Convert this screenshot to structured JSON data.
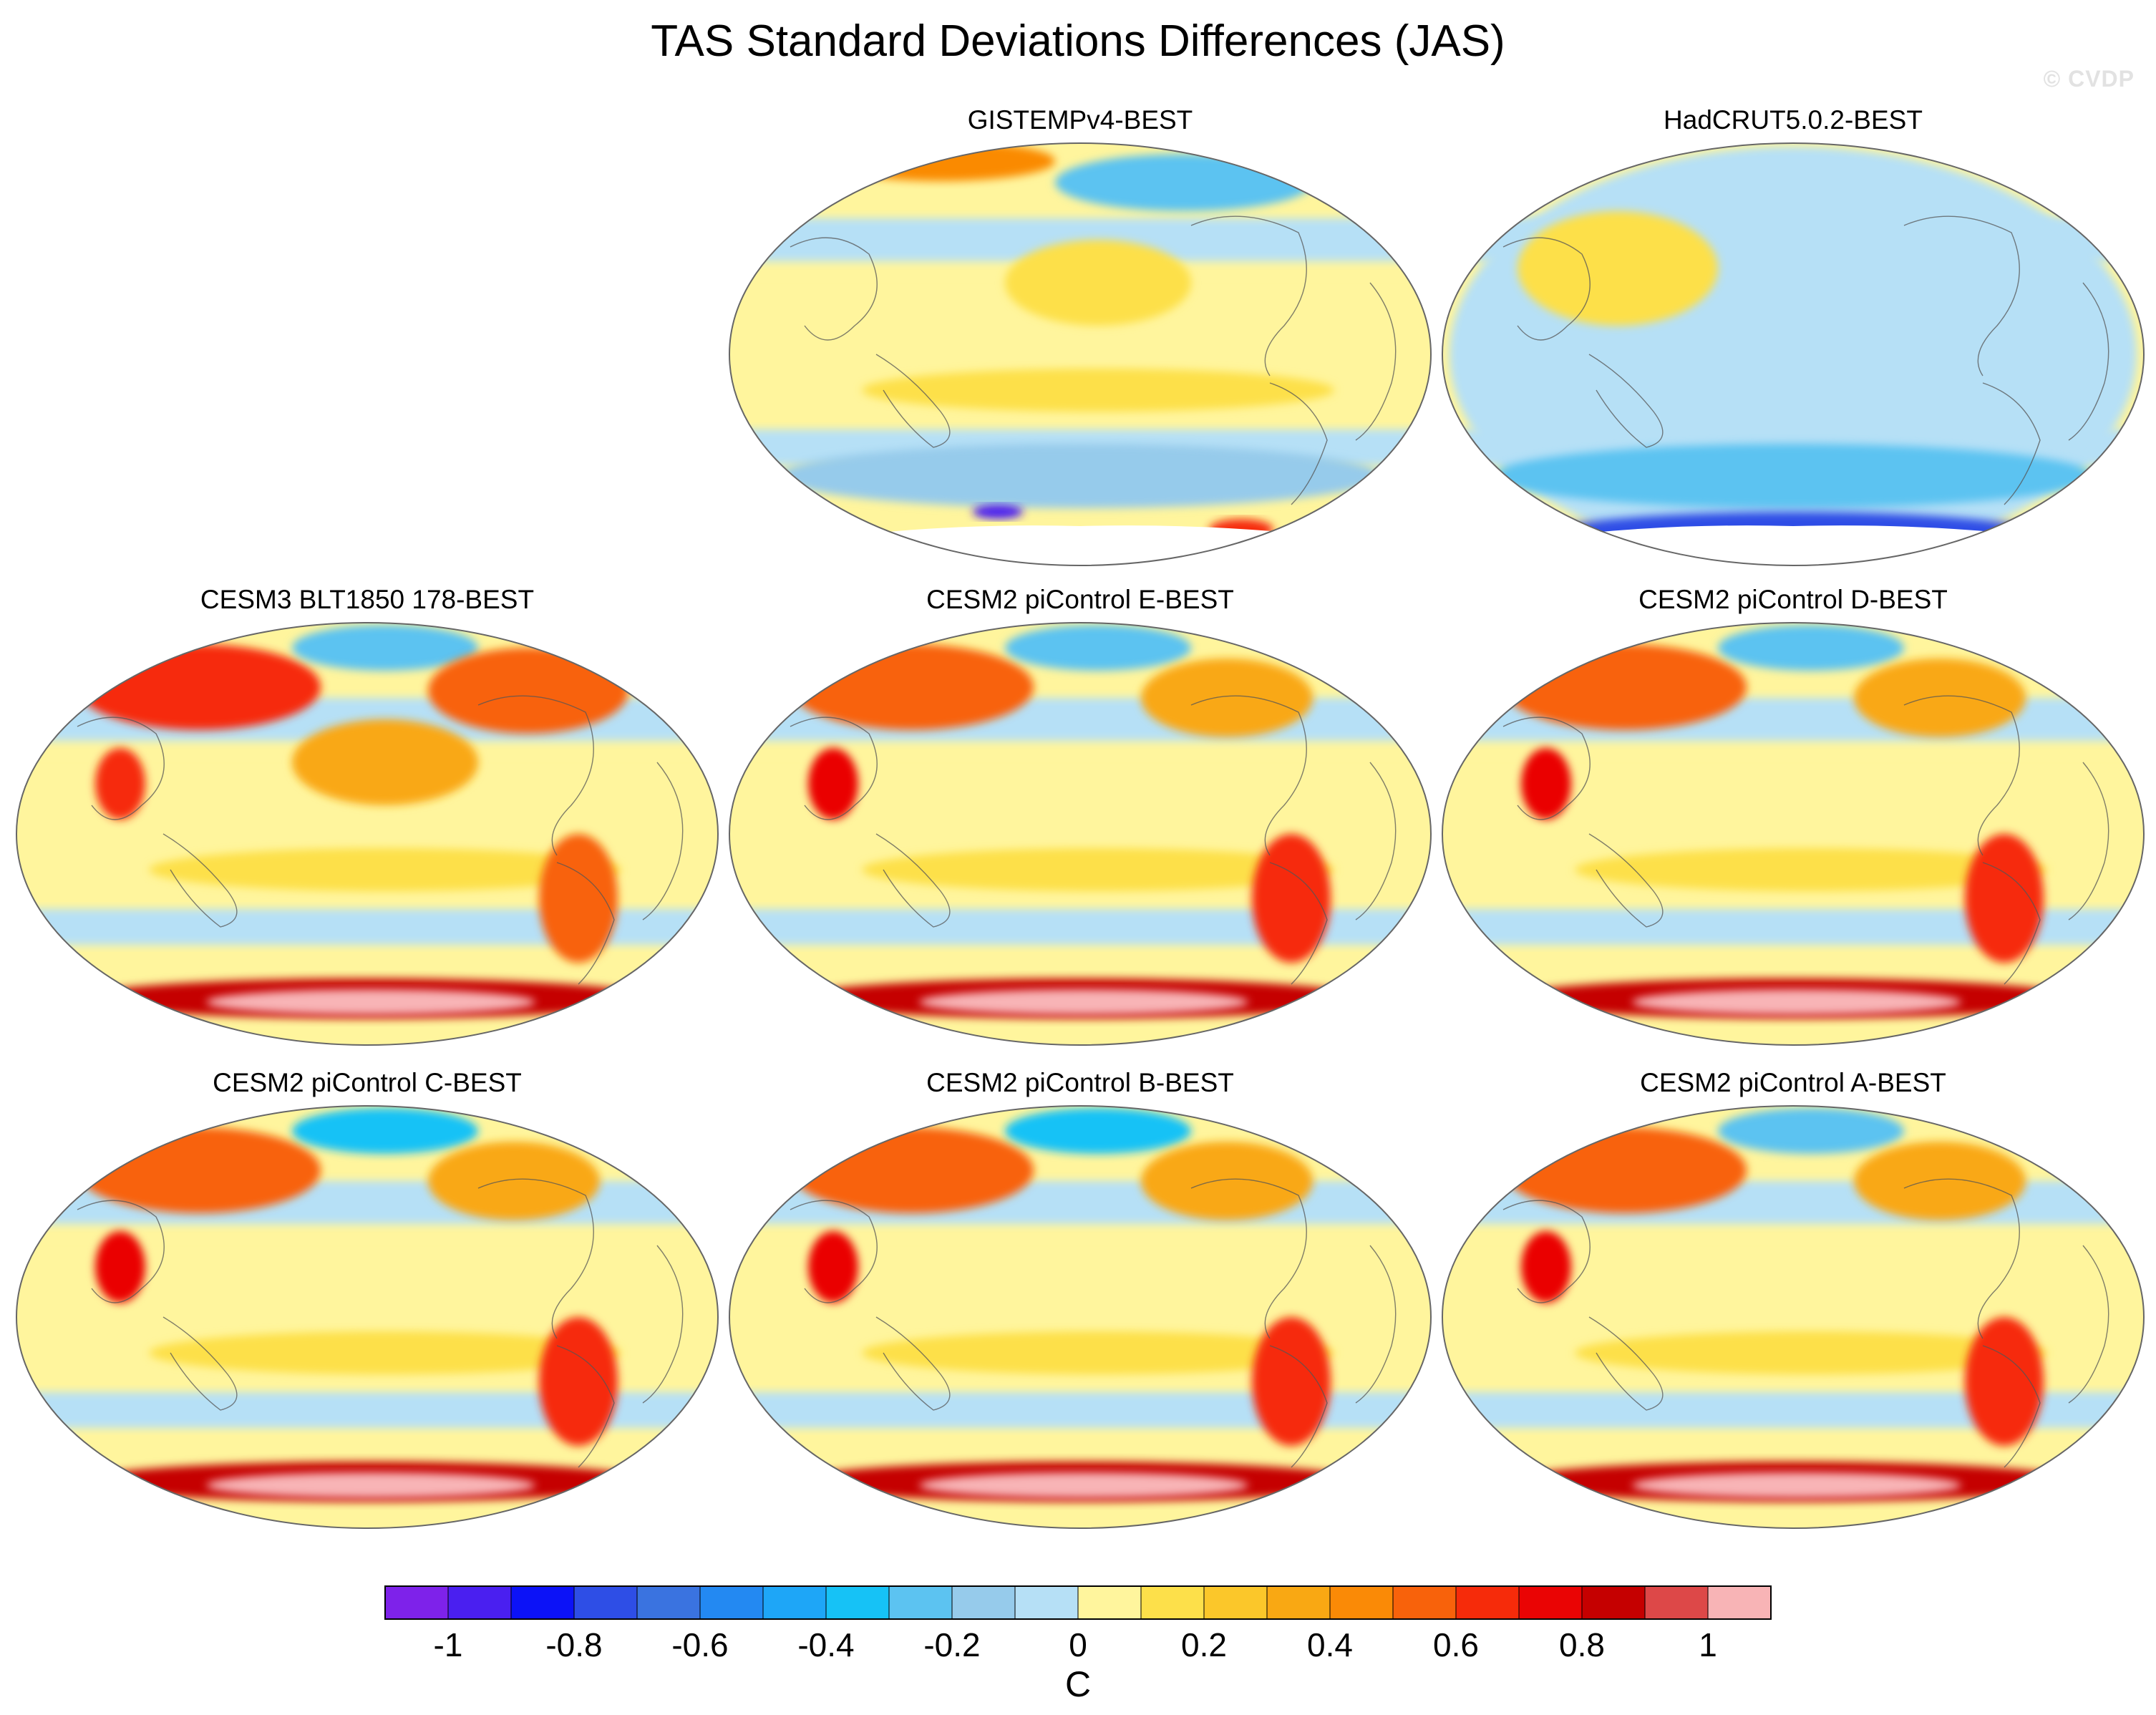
{
  "page": {
    "title": "TAS Standard Deviations Differences (JAS)",
    "watermark": "© CVDP"
  },
  "chart_data": [
    {
      "type": "heatmap",
      "title": "GISTEMPv4-BEST",
      "projection": "Robinson, Pacific-centered",
      "missing_region": "Antarctic interior (white)",
      "features": [
        {
          "region": "Arctic north of Siberia",
          "value": 0.4
        },
        {
          "region": "Arctic north of Canada / Greenland",
          "value": -0.3
        },
        {
          "region": "North Pacific",
          "value": 0.1
        },
        {
          "region": "Tropical Pacific",
          "value": 0.1
        },
        {
          "region": "Southern Ocean",
          "value": -0.2
        },
        {
          "region": "Antarctic Peninsula",
          "value": 0.6
        },
        {
          "region": "East Antarctic edge",
          "value": -1.0
        }
      ]
    },
    {
      "type": "heatmap",
      "title": "HadCRUT5.0.2-BEST",
      "projection": "Robinson, Pacific-centered",
      "missing_region": "Antarctic interior patches (white)",
      "features": [
        {
          "region": "Global ocean",
          "value": -0.1
        },
        {
          "region": "Continents",
          "value": 0.1
        },
        {
          "region": "Southern Ocean",
          "value": -0.3
        },
        {
          "region": "Antarctica",
          "value": -0.8
        }
      ]
    },
    {
      "type": "heatmap",
      "title": "CESM3 BLT1850 178-BEST",
      "projection": "Robinson, Pacific-centered",
      "features": [
        {
          "region": "Siberia",
          "value": 0.6
        },
        {
          "region": "Arctic Ocean",
          "value": -0.3
        },
        {
          "region": "Canada / Greenland",
          "value": 0.5
        },
        {
          "region": "North Pacific",
          "value": 0.3
        },
        {
          "region": "South Asia",
          "value": 0.6
        },
        {
          "region": "Tropical Pacific",
          "value": 0.1
        },
        {
          "region": "South America",
          "value": 0.5
        },
        {
          "region": "Antarctic coast",
          "value": 0.8
        },
        {
          "region": "Antarctic interior",
          "value": 1.1
        }
      ]
    },
    {
      "type": "heatmap",
      "title": "CESM2 piControl E-BEST",
      "projection": "Robinson, Pacific-centered",
      "features": [
        {
          "region": "Siberia",
          "value": 0.5
        },
        {
          "region": "Arctic Ocean",
          "value": -0.3
        },
        {
          "region": "Canada",
          "value": 0.3
        },
        {
          "region": "South Asia",
          "value": 0.7
        },
        {
          "region": "Tropical Pacific",
          "value": 0.1
        },
        {
          "region": "South America",
          "value": 0.6
        },
        {
          "region": "Antarctic coast",
          "value": 0.8
        },
        {
          "region": "Antarctic interior",
          "value": 1.1
        }
      ]
    },
    {
      "type": "heatmap",
      "title": "CESM2 piControl D-BEST",
      "projection": "Robinson, Pacific-centered",
      "features": [
        {
          "region": "Siberia",
          "value": 0.5
        },
        {
          "region": "Arctic Ocean",
          "value": -0.3
        },
        {
          "region": "Canada",
          "value": 0.3
        },
        {
          "region": "South Asia",
          "value": 0.7
        },
        {
          "region": "Tropical Pacific",
          "value": 0.1
        },
        {
          "region": "South America",
          "value": 0.6
        },
        {
          "region": "Antarctic coast",
          "value": 0.8
        },
        {
          "region": "Antarctic interior",
          "value": 1.1
        }
      ]
    },
    {
      "type": "heatmap",
      "title": "CESM2 piControl C-BEST",
      "projection": "Robinson, Pacific-centered",
      "features": [
        {
          "region": "Siberia",
          "value": 0.5
        },
        {
          "region": "Arctic Ocean",
          "value": -0.4
        },
        {
          "region": "Canada",
          "value": 0.3
        },
        {
          "region": "South Asia",
          "value": 0.7
        },
        {
          "region": "Tropical Pacific",
          "value": 0.1
        },
        {
          "region": "South America",
          "value": 0.6
        },
        {
          "region": "Antarctic coast",
          "value": 0.8
        },
        {
          "region": "Antarctic interior",
          "value": 1.1
        }
      ]
    },
    {
      "type": "heatmap",
      "title": "CESM2 piControl B-BEST",
      "projection": "Robinson, Pacific-centered",
      "features": [
        {
          "region": "Siberia",
          "value": 0.5
        },
        {
          "region": "Arctic Ocean",
          "value": -0.4
        },
        {
          "region": "Canada",
          "value": 0.3
        },
        {
          "region": "South Asia",
          "value": 0.7
        },
        {
          "region": "Tropical Pacific",
          "value": 0.1
        },
        {
          "region": "South America",
          "value": 0.6
        },
        {
          "region": "Antarctic coast",
          "value": 0.8
        },
        {
          "region": "Antarctic interior",
          "value": 1.1
        }
      ]
    },
    {
      "type": "heatmap",
      "title": "CESM2 piControl A-BEST",
      "projection": "Robinson, Pacific-centered",
      "features": [
        {
          "region": "Siberia",
          "value": 0.5
        },
        {
          "region": "Arctic Ocean",
          "value": -0.3
        },
        {
          "region": "Canada",
          "value": 0.3
        },
        {
          "region": "South Asia",
          "value": 0.7
        },
        {
          "region": "Tropical Pacific",
          "value": 0.1
        },
        {
          "region": "South America",
          "value": 0.6
        },
        {
          "region": "Antarctic coast",
          "value": 0.8
        },
        {
          "region": "Antarctic interior",
          "value": 1.1
        }
      ]
    }
  ],
  "colorbar": {
    "unit": "C",
    "levels": [
      -1.1,
      -1.0,
      -0.9,
      -0.8,
      -0.7,
      -0.6,
      -0.5,
      -0.4,
      -0.3,
      -0.2,
      -0.1,
      0,
      0.1,
      0.2,
      0.3,
      0.4,
      0.5,
      0.6,
      0.7,
      0.8,
      0.9,
      1.0,
      1.1
    ],
    "colors": [
      "#7e22ea",
      "#4a1ff0",
      "#0c12f7",
      "#2e4ee6",
      "#3a73e0",
      "#2389f2",
      "#1ea6f7",
      "#16c2f6",
      "#5cc3f1",
      "#96cbeb",
      "#b6e0f6",
      "#fff59d",
      "#fde04a",
      "#fbc72a",
      "#f9a813",
      "#fa8a06",
      "#f8620b",
      "#f62b0a",
      "#ea0404",
      "#c50000",
      "#dd4848",
      "#f8b4b6"
    ],
    "tick_labels": [
      "-1",
      "-0.8",
      "-0.6",
      "-0.4",
      "-0.2",
      "0",
      "0.2",
      "0.4",
      "0.6",
      "0.8",
      "1"
    ]
  }
}
